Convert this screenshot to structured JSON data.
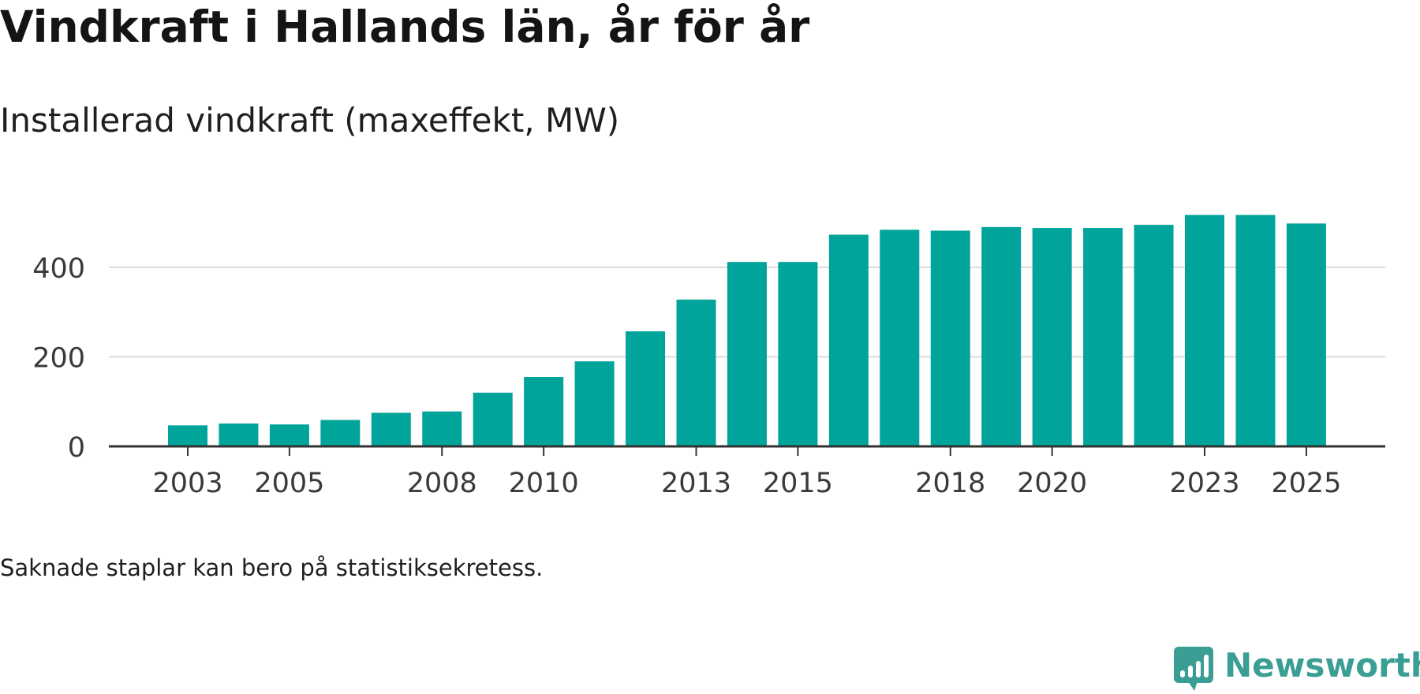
{
  "title": "Vindkraft i Hallands län, år för år",
  "subtitle": "Installerad vindkraft (maxeffekt, MW)",
  "footnote": "Saknade staplar kan bero på statistiksekretess.",
  "brand": {
    "name": "Newsworthy",
    "icon": "newsworthy-logo-icon"
  },
  "colors": {
    "bar": "#00a49a",
    "grid": "#dcdcdc",
    "axis": "#333333",
    "tick_text": "#3a3a3a",
    "brand": "#3a9e94"
  },
  "chart_data": {
    "type": "bar",
    "title": "Vindkraft i Hallands län, år för år",
    "subtitle": "Installerad vindkraft (maxeffekt, MW)",
    "xlabel": "",
    "ylabel": "",
    "categories": [
      "2003",
      "2004",
      "2005",
      "2006",
      "2007",
      "2008",
      "2009",
      "2010",
      "2011",
      "2012",
      "2013",
      "2014",
      "2015",
      "2016",
      "2017",
      "2018",
      "2019",
      "2020",
      "2021",
      "2022",
      "2023",
      "2024",
      "2025"
    ],
    "values": [
      47,
      51,
      49,
      59,
      75,
      78,
      120,
      155,
      190,
      257,
      328,
      412,
      412,
      473,
      484,
      482,
      490,
      488,
      488,
      495,
      517,
      517,
      498
    ],
    "x_tick_labels": [
      "2003",
      "2005",
      "2008",
      "2010",
      "2013",
      "2015",
      "2018",
      "2020",
      "2023",
      "2025"
    ],
    "y_ticks": [
      0,
      200,
      400
    ],
    "ylim": [
      0,
      560
    ],
    "grid": true,
    "legend": "none"
  }
}
